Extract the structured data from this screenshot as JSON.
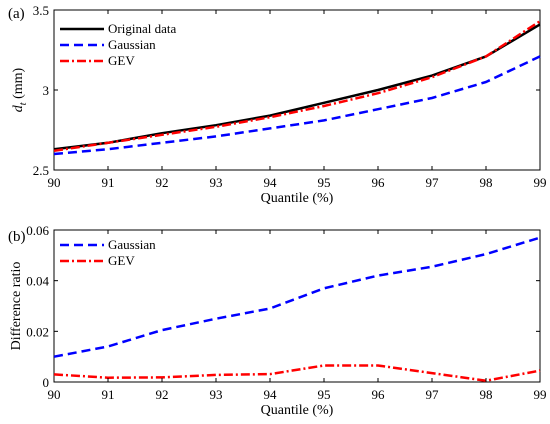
{
  "chart_data": [
    {
      "panel_label": "(a)",
      "type": "line",
      "xlabel": "Quantile (%)",
      "ylabel_main": "d",
      "ylabel_sub": "t",
      "ylabel_unit": " (mm)",
      "x": [
        90,
        91,
        92,
        93,
        94,
        95,
        96,
        97,
        98,
        99
      ],
      "xlim": [
        90,
        99
      ],
      "ylim": [
        2.5,
        3.5
      ],
      "xticks": [
        "90",
        "91",
        "92",
        "93",
        "94",
        "95",
        "96",
        "97",
        "98",
        "99"
      ],
      "yticks": [
        "2.5",
        "3",
        "3.5"
      ],
      "ytick_values": [
        2.5,
        3,
        3.5
      ],
      "legend_position": "top-left",
      "series": [
        {
          "name": "Original data",
          "color": "#000000",
          "style": "solid",
          "values": [
            2.63,
            2.67,
            2.73,
            2.78,
            2.84,
            2.92,
            3.0,
            3.09,
            3.21,
            3.41
          ]
        },
        {
          "name": "Gaussian",
          "color": "#0000ff",
          "style": "dashed",
          "values": [
            2.6,
            2.63,
            2.67,
            2.71,
            2.76,
            2.81,
            2.88,
            2.95,
            3.05,
            3.21
          ]
        },
        {
          "name": "GEV",
          "color": "#ff0000",
          "style": "dashdot",
          "values": [
            2.62,
            2.67,
            2.72,
            2.77,
            2.83,
            2.9,
            2.98,
            3.08,
            3.21,
            3.43
          ]
        }
      ]
    },
    {
      "panel_label": "(b)",
      "type": "line",
      "xlabel": "Quantile (%)",
      "ylabel": "Difference ratio",
      "x": [
        90,
        91,
        92,
        93,
        94,
        95,
        96,
        97,
        98,
        99
      ],
      "xlim": [
        90,
        99
      ],
      "ylim": [
        0,
        0.06
      ],
      "xticks": [
        "90",
        "91",
        "92",
        "93",
        "94",
        "95",
        "96",
        "97",
        "98",
        "99"
      ],
      "yticks": [
        "0",
        "0.02",
        "0.04",
        "0.06"
      ],
      "ytick_values": [
        0,
        0.02,
        0.04,
        0.06
      ],
      "legend_position": "top-left",
      "series": [
        {
          "name": "Gaussian",
          "color": "#0000ff",
          "style": "dashed",
          "values": [
            0.01,
            0.014,
            0.0205,
            0.025,
            0.029,
            0.037,
            0.042,
            0.0455,
            0.0505,
            0.057
          ]
        },
        {
          "name": "GEV",
          "color": "#ff0000",
          "style": "dashdot",
          "values": [
            0.003,
            0.0017,
            0.0018,
            0.0028,
            0.0031,
            0.0065,
            0.0065,
            0.0035,
            0.0005,
            0.0045
          ]
        }
      ]
    }
  ]
}
